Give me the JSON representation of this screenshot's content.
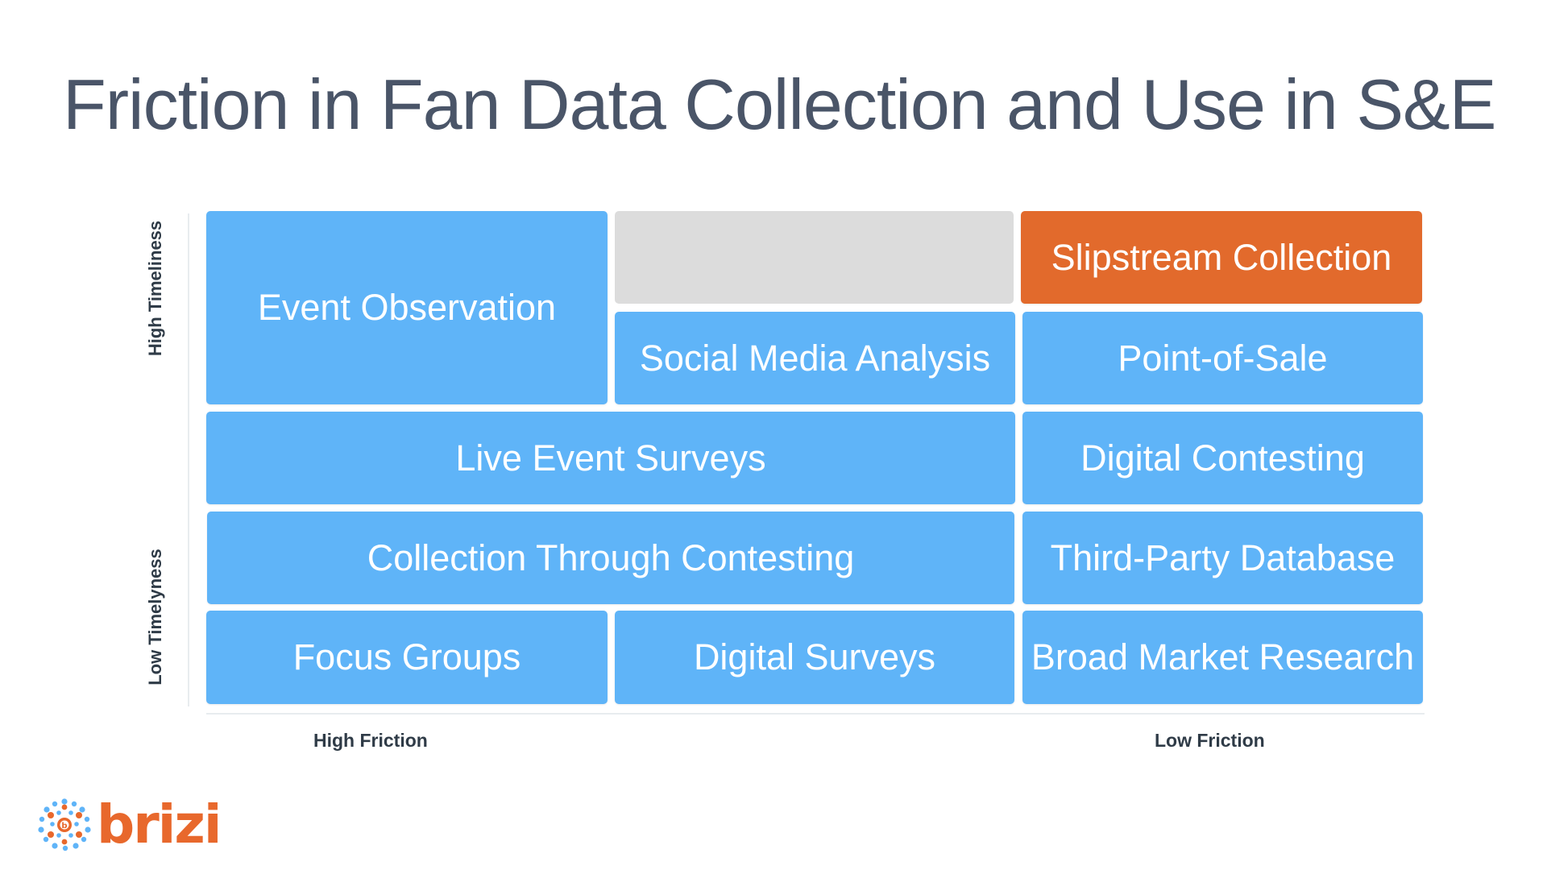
{
  "title": "Friction in Fan Data Collection and Use in S&E",
  "axes": {
    "y_high": "High Timeliness",
    "y_low": "Low Timelyness",
    "x_high": "High Friction",
    "x_low": "Low Friction"
  },
  "cells": {
    "event_observation": "Event Observation",
    "slipstream_collection": "Slipstream Collection",
    "social_media_analysis": "Social Media Analysis",
    "point_of_sale": "Point-of-Sale",
    "live_event_surveys": "Live Event Surveys",
    "digital_contesting": "Digital Contesting",
    "collection_through_contesting": "Collection Through Contesting",
    "third_party_database": "Third-Party Database",
    "focus_groups": "Focus Groups",
    "digital_surveys": "Digital Surveys",
    "broad_market_research": "Broad Market Research"
  },
  "colors": {
    "cell": "#5fb4f8",
    "highlight": "#e26a2c",
    "empty": "#dcdcdc",
    "brand": "#e8682c"
  },
  "logo": {
    "text": "brizi",
    "icon": "brizi-dots-icon"
  }
}
